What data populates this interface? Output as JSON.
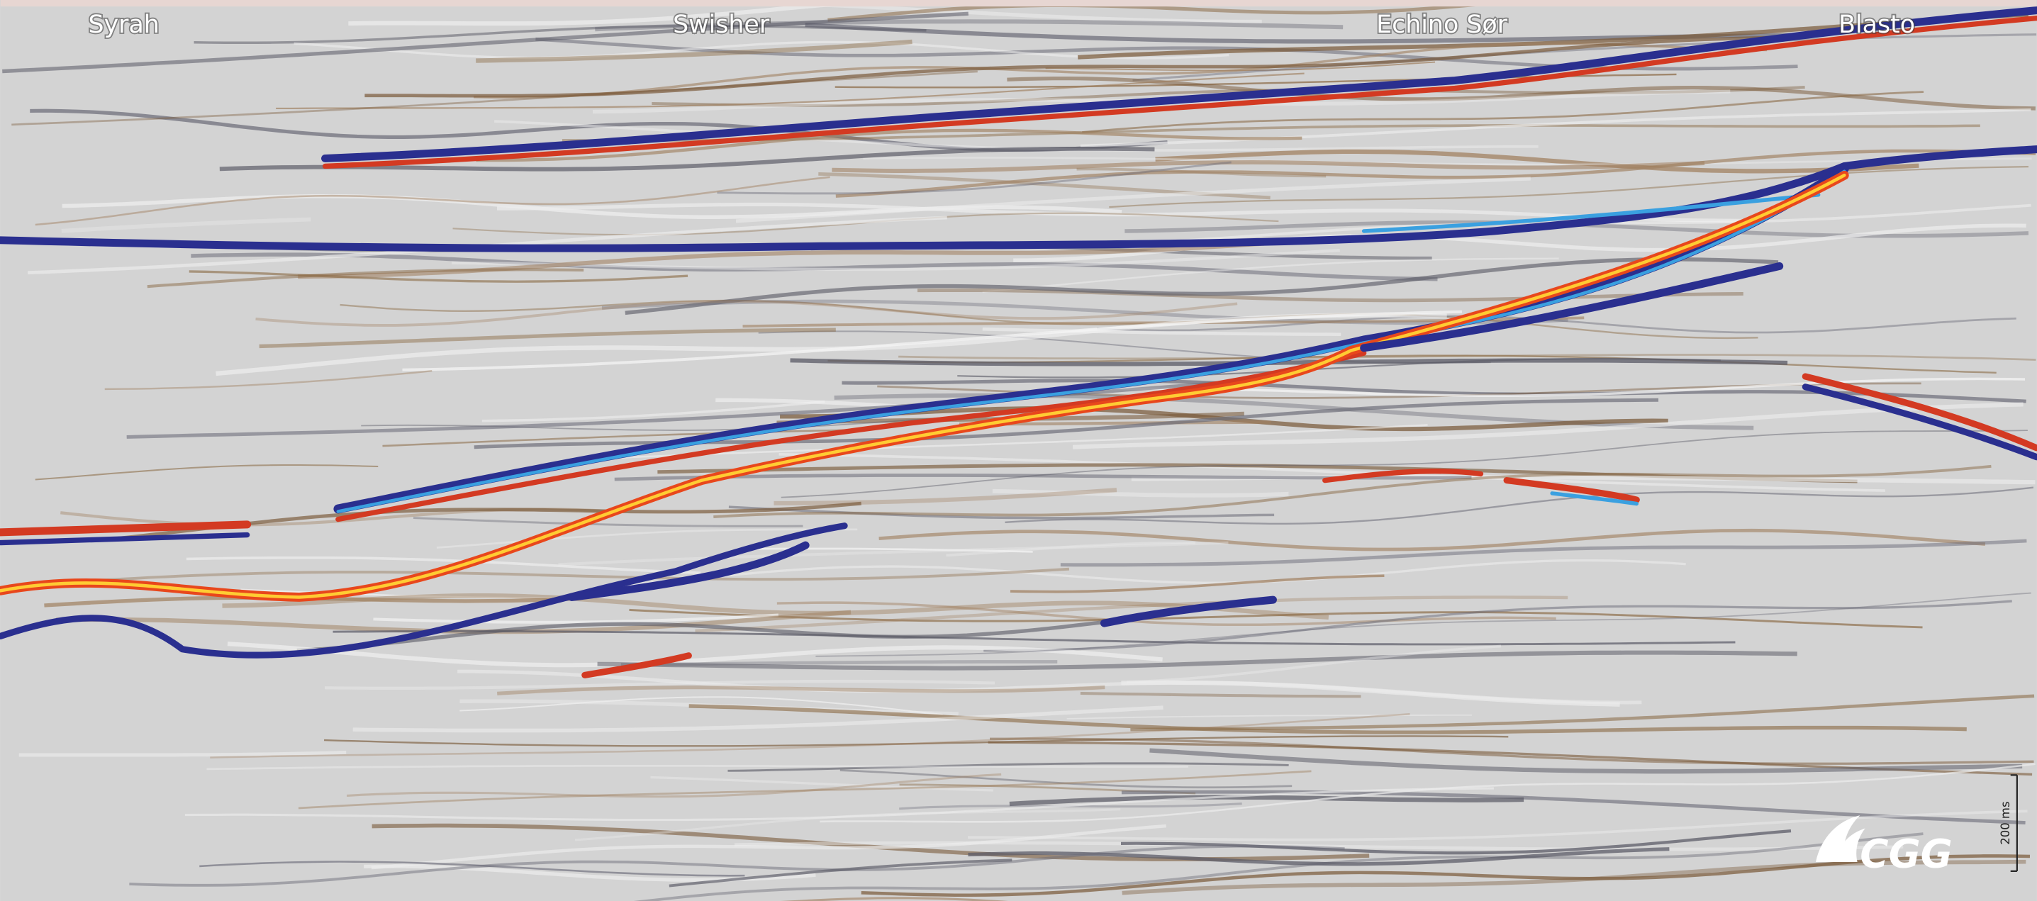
{
  "wells": [
    "Syrah",
    "Swisher",
    "Echino Sør",
    "Blasto"
  ],
  "scale_bar": "200 ms",
  "logo": "CGG"
}
